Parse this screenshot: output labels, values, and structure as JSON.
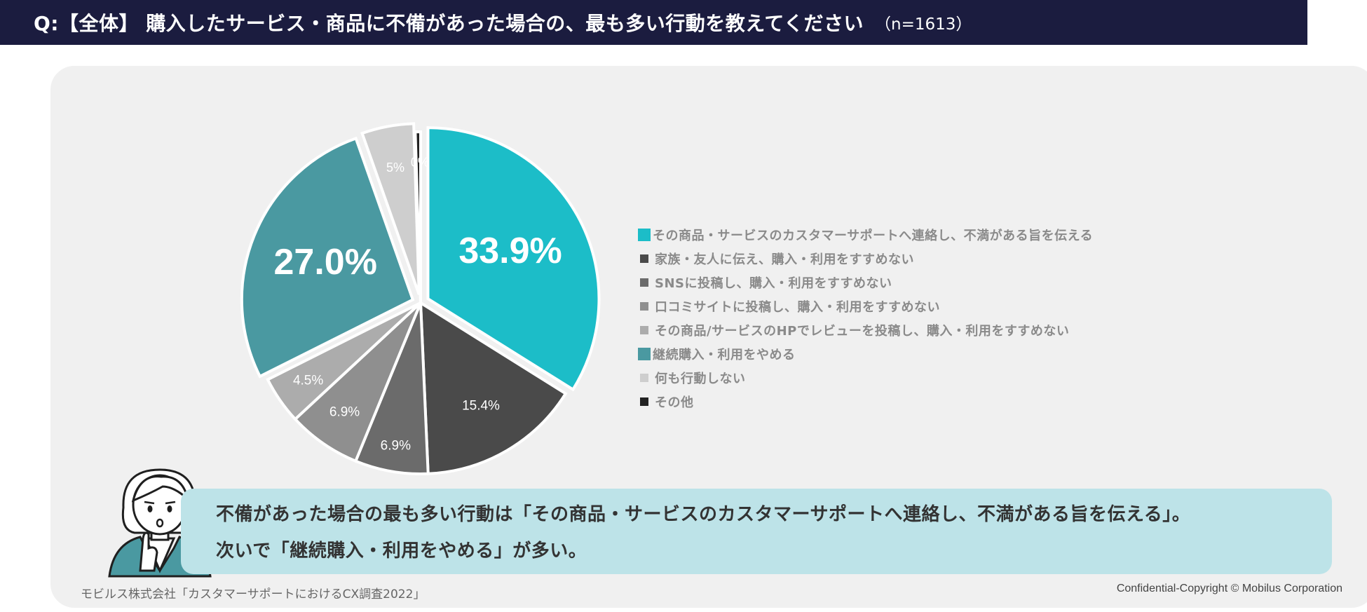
{
  "header": {
    "title": "Q:【全体】 購入したサービス・商品に不備があった場合の、最も多い行動を教えてください",
    "sample_size": "（n=1613）"
  },
  "chart_data": {
    "type": "pie",
    "slices": [
      {
        "label": "その商品・サービスのカスタマーサポートへ連絡し、不満がある旨を伝える",
        "value": 33.9,
        "data_label": "33.9%",
        "color": "#1cbdc8",
        "exploded": true
      },
      {
        "label": "家族・友人に伝え、購入・利用をすすめない",
        "value": 15.4,
        "data_label": "15.4%",
        "color": "#4a4a4a",
        "exploded": false
      },
      {
        "label": "SNSに投稿し、購入・利用をすすめない",
        "value": 6.9,
        "data_label": "6.9%",
        "color": "#6b6b6b",
        "exploded": false
      },
      {
        "label": "口コミサイトに投稿し、購入・利用をすすめない",
        "value": 6.9,
        "data_label": "6.9%",
        "color": "#8f8f8f",
        "exploded": false
      },
      {
        "label": "その商品/サービスのHPでレビューを投稿し、購入・利用をすすめない",
        "value": 4.5,
        "data_label": "4.5%",
        "color": "#acacac",
        "exploded": false
      },
      {
        "label": "継続購入・利用をやめる",
        "value": 27.0,
        "data_label": "27.0%",
        "color": "#4a99a1",
        "exploded": true
      },
      {
        "label": "何も行動しない",
        "value": 4.9,
        "data_label": "5%",
        "color": "#cecece",
        "exploded": true
      },
      {
        "label": "その他",
        "value": 0.5,
        "data_label": "0%",
        "color": "#222222",
        "exploded": false
      }
    ],
    "legend_position": "right"
  },
  "callout": {
    "line1": "不備があった場合の最も多い行動は「その商品・サービスのカスタマーサポートへ連絡し、不満がある旨を伝える」。",
    "line2": "次いで「継続購入・利用をやめる」が多い。"
  },
  "footer": {
    "source": "モビルス株式会社「カスタマーサポートにおけるCX調査2022」",
    "copyright": "Confidential-Copyright © Mobilus Corporation"
  }
}
